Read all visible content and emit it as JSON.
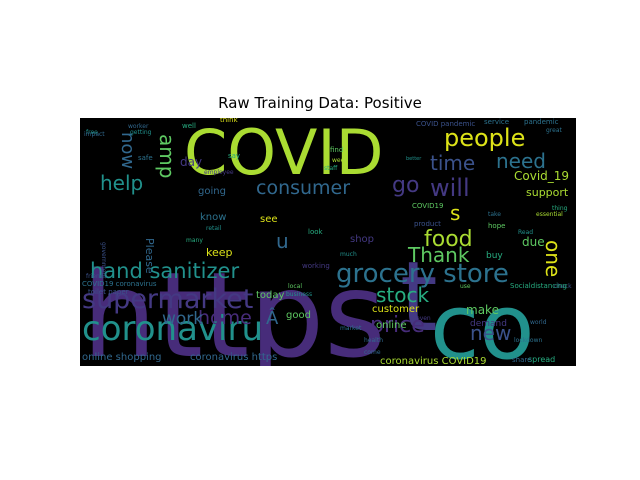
{
  "chart_title": "Raw Training Data: Positive",
  "palette": {
    "purple": "#472c7a",
    "violet": "#443983",
    "blue": "#31688e",
    "teal": "#21918c",
    "sea": "#27ad81",
    "green": "#5ec962",
    "lime": "#aadc32",
    "yellow": "#dde318",
    "deep": "#3b528b",
    "dark": "#2c728e"
  },
  "chart_data": {
    "type": "wordcloud",
    "title": "Raw Training Data: Positive",
    "words": [
      {
        "text": "https",
        "color": "#472c7a"
      },
      {
        "text": "t",
        "color": "#443983"
      },
      {
        "text": "co",
        "color": "#21918c"
      },
      {
        "text": "COVID",
        "color": "#aadc32"
      },
      {
        "text": "coronaviru",
        "color": "#21918c"
      },
      {
        "text": "supermarket",
        "color": "#443983"
      },
      {
        "text": "grocery store",
        "color": "#2c728e"
      },
      {
        "text": "hand sanitizer",
        "color": "#21918c"
      },
      {
        "text": "people",
        "color": "#dde318"
      },
      {
        "text": "consumer",
        "color": "#31688e"
      },
      {
        "text": "price",
        "color": "#472c7a"
      },
      {
        "text": "food",
        "color": "#aadc32"
      },
      {
        "text": "will",
        "color": "#443983"
      },
      {
        "text": "time",
        "color": "#3b528b"
      },
      {
        "text": "need",
        "color": "#2c728e"
      },
      {
        "text": "help",
        "color": "#21918c"
      },
      {
        "text": "amp",
        "color": "#5ec962"
      },
      {
        "text": "now",
        "color": "#31688e"
      },
      {
        "text": "go",
        "color": "#443983"
      },
      {
        "text": "s",
        "color": "#dde318"
      },
      {
        "text": "home",
        "color": "#472c7a"
      },
      {
        "text": "Â",
        "color": "#31688e"
      },
      {
        "text": "work",
        "color": "#31688e"
      },
      {
        "text": "stock",
        "color": "#27ad81"
      },
      {
        "text": "Thank",
        "color": "#5ec962"
      },
      {
        "text": "new",
        "color": "#3b528b"
      },
      {
        "text": "one",
        "color": "#dde318"
      },
      {
        "text": "u",
        "color": "#31688e"
      },
      {
        "text": "Covid_19",
        "color": "#aadc32"
      },
      {
        "text": "support",
        "color": "#aadc32"
      },
      {
        "text": "online shopping",
        "color": "#31688e"
      },
      {
        "text": "coronavirus https",
        "color": "#31688e"
      },
      {
        "text": "coronavirus COVID19",
        "color": "#aadc32"
      },
      {
        "text": "customer",
        "color": "#dde318"
      },
      {
        "text": "make",
        "color": "#5ec962"
      },
      {
        "text": "demand",
        "color": "#443983"
      },
      {
        "text": "online",
        "color": "#5ec962"
      },
      {
        "text": "due",
        "color": "#5ec962"
      },
      {
        "text": "keep",
        "color": "#dde318"
      },
      {
        "text": "good",
        "color": "#5ec962"
      },
      {
        "text": "today",
        "color": "#5ec962"
      },
      {
        "text": "see",
        "color": "#dde318"
      },
      {
        "text": "day",
        "color": "#443983"
      },
      {
        "text": "going",
        "color": "#31688e"
      },
      {
        "text": "know",
        "color": "#2c728e"
      },
      {
        "text": "Please",
        "color": "#31688e"
      },
      {
        "text": "shop",
        "color": "#443983"
      },
      {
        "text": "buy",
        "color": "#27ad81"
      },
      {
        "text": "spread",
        "color": "#27ad81"
      },
      {
        "text": "share",
        "color": "#31688e"
      },
      {
        "text": "well",
        "color": "#27ad81"
      },
      {
        "text": "think",
        "color": "#dde318"
      },
      {
        "text": "say",
        "color": "#27ad81"
      },
      {
        "text": "find",
        "color": "#5ec962"
      },
      {
        "text": "week",
        "color": "#aadc32"
      },
      {
        "text": "staff",
        "color": "#27ad81"
      },
      {
        "text": "look",
        "color": "#27ad81"
      },
      {
        "text": "much",
        "color": "#21918c"
      },
      {
        "text": "working",
        "color": "#443983"
      },
      {
        "text": "local",
        "color": "#5ec962"
      },
      {
        "text": "business",
        "color": "#21918c"
      },
      {
        "text": "retail",
        "color": "#21918c"
      },
      {
        "text": "many",
        "color": "#27ad81"
      },
      {
        "text": "safe",
        "color": "#2c728e"
      },
      {
        "text": "free",
        "color": "#21918c"
      },
      {
        "text": "impact",
        "color": "#31688e"
      },
      {
        "text": "worker",
        "color": "#31688e"
      },
      {
        "text": "getting",
        "color": "#21918c"
      },
      {
        "text": "product",
        "color": "#3b528b"
      },
      {
        "text": "hope",
        "color": "#5ec962"
      },
      {
        "text": "lockdown",
        "color": "#2c728e"
      },
      {
        "text": "essential",
        "color": "#aadc32"
      },
      {
        "text": "thing",
        "color": "#27ad81"
      },
      {
        "text": "take",
        "color": "#2c728e"
      },
      {
        "text": "COVID19",
        "color": "#5ec962"
      },
      {
        "text": "service",
        "color": "#2c728e"
      },
      {
        "text": "pandemic",
        "color": "#2c728e"
      },
      {
        "text": "great",
        "color": "#2c728e"
      },
      {
        "text": "check",
        "color": "#3b528b"
      },
      {
        "text": "Read",
        "color": "#21918c"
      },
      {
        "text": "world",
        "color": "#31688e"
      },
      {
        "text": "market",
        "color": "#2c728e"
      },
      {
        "text": "health",
        "color": "#31688e"
      },
      {
        "text": "come",
        "color": "#31688e"
      },
      {
        "text": "use",
        "color": "#5ec962"
      },
      {
        "text": "government",
        "color": "#3b528b"
      },
      {
        "text": "employee",
        "color": "#443983"
      },
      {
        "text": "better",
        "color": "#21918c"
      },
      {
        "text": "even",
        "color": "#443983"
      },
      {
        "text": "friend",
        "color": "#3b528b"
      },
      {
        "text": "toilet paper",
        "color": "#3b528b"
      },
      {
        "text": "store",
        "color": "#27ad81"
      },
      {
        "text": "Socialdistancing",
        "color": "#27ad81"
      },
      {
        "text": "COVID pandemic",
        "color": "#3b528b"
      },
      {
        "text": "COVID19 coronavirus",
        "color": "#2c728e"
      }
    ]
  }
}
